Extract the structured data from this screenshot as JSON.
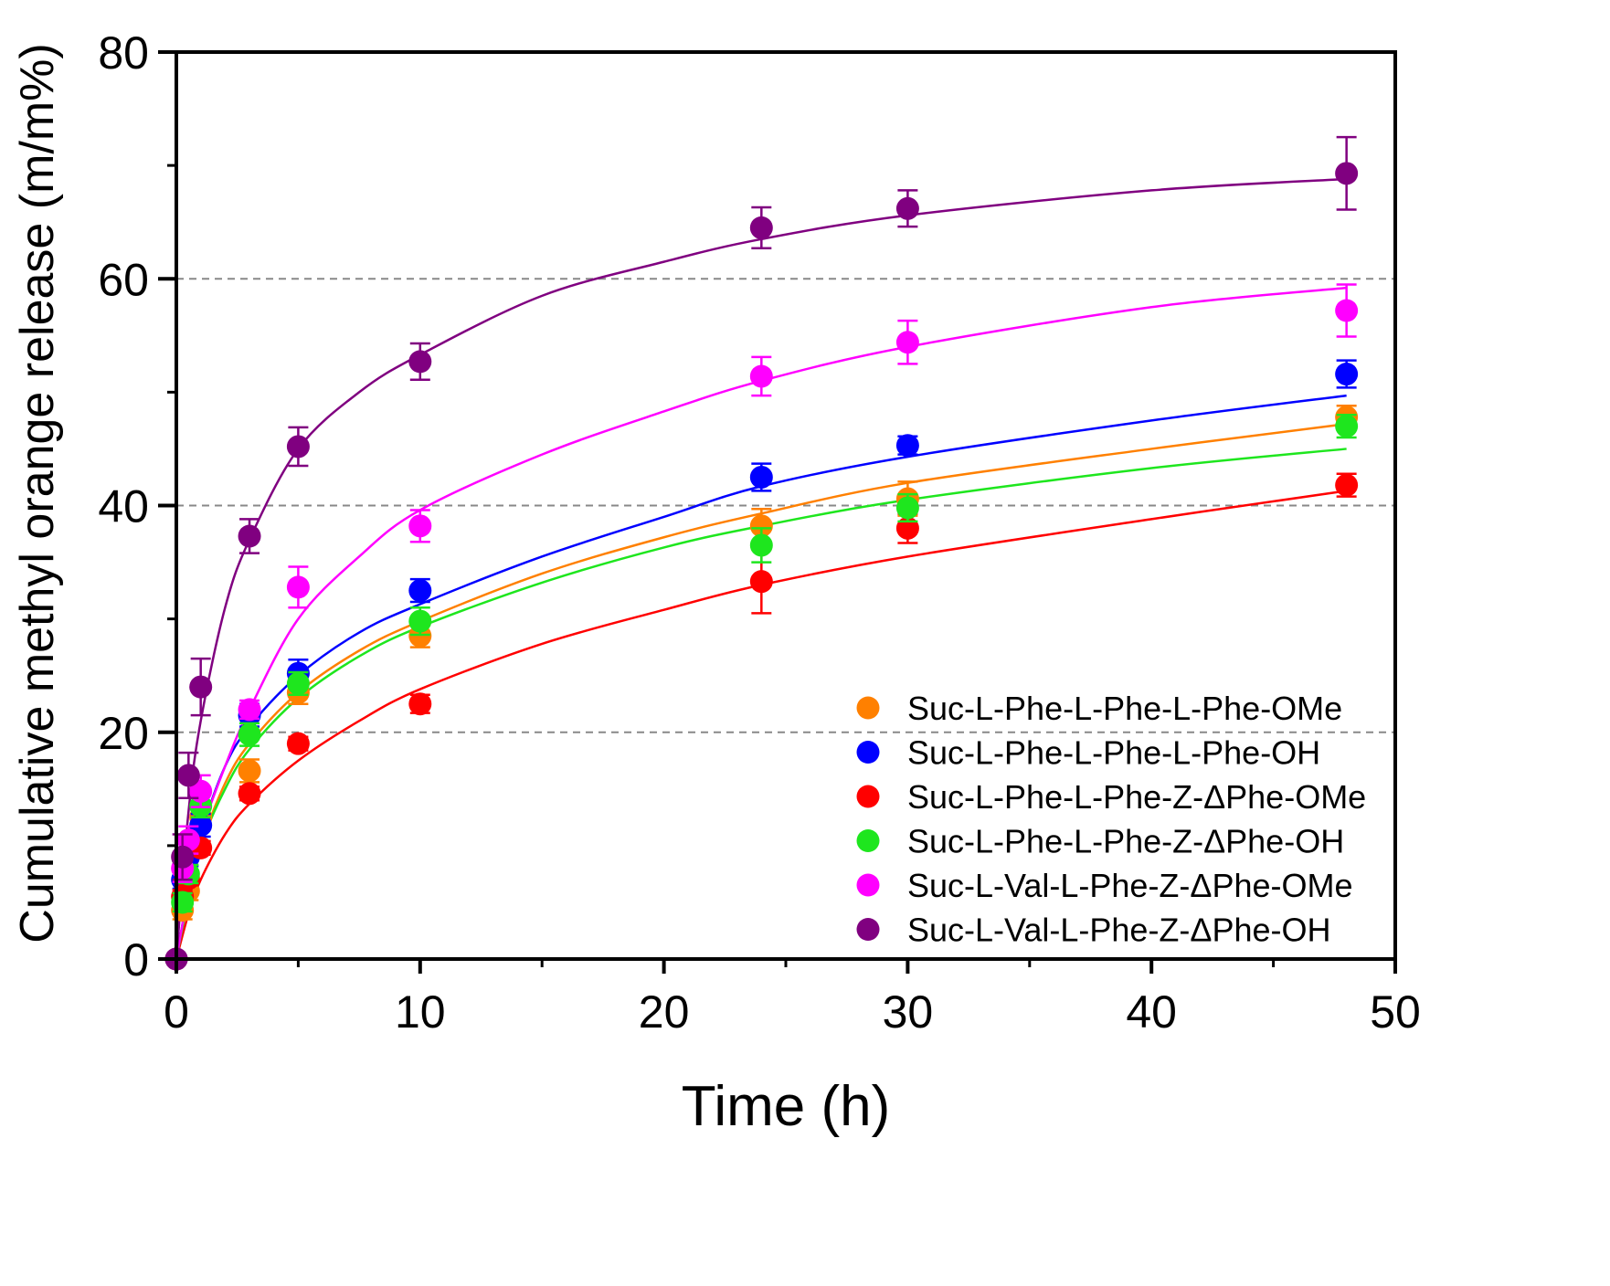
{
  "chart_data": {
    "type": "scatter",
    "title": "",
    "xlabel": "Time (h)",
    "ylabel": "Cumulative methyl orange release (m/m%)",
    "xlim": [
      0,
      50
    ],
    "ylim": [
      0,
      80
    ],
    "xticks": [
      "0",
      "10",
      "20",
      "30",
      "40",
      "50"
    ],
    "yticks": [
      "0",
      "20",
      "40",
      "60",
      "80"
    ],
    "grid": "horizontal dashed at 20, 40, 60",
    "legend_position": "bottom-right",
    "x": [
      0,
      0.25,
      0.5,
      1,
      3,
      5,
      10,
      24,
      30,
      48
    ],
    "fit_x": [
      0,
      0.5,
      1,
      2,
      3,
      5,
      7.5,
      10,
      15,
      20,
      24,
      30,
      40,
      48
    ],
    "series": [
      {
        "name": "Suc-L-Phe-L-Phe-L-Phe-OMe",
        "color": "#ff8000",
        "values": [
          0,
          4.3,
          6.0,
          12.5,
          16.6,
          23.5,
          28.5,
          38.2,
          40.6,
          47.8
        ],
        "errors": [
          0,
          0.8,
          0.8,
          1.0,
          1.0,
          1.0,
          1.0,
          1.5,
          1.5,
          1.0
        ],
        "fit": [
          0,
          5.5,
          10,
          15.5,
          19,
          23.5,
          27.2,
          29.8,
          34,
          37.2,
          39.3,
          42,
          45,
          47.2
        ]
      },
      {
        "name": "Suc-L-Phe-L-Phe-L-Phe-OH",
        "color": "#0000ff",
        "values": [
          0,
          7.0,
          9.0,
          11.8,
          21.5,
          25.2,
          32.5,
          42.5,
          45.3,
          51.6
        ],
        "errors": [
          0,
          0.8,
          0.8,
          1.0,
          1.0,
          1.2,
          1.0,
          1.2,
          0.8,
          1.2
        ],
        "fit": [
          0,
          6,
          11,
          17,
          20.5,
          25,
          28.8,
          31.3,
          35.5,
          39,
          41.7,
          44.3,
          47.5,
          49.7
        ]
      },
      {
        "name": "Suc-L-Phe-L-Phe-Z-ΔPhe-OMe",
        "color": "#ff0000",
        "values": [
          0,
          5.5,
          7.1,
          9.8,
          14.6,
          19.0,
          22.5,
          33.3,
          38.0,
          41.8
        ],
        "errors": [
          0,
          0.6,
          0.6,
          0.6,
          0.6,
          0.6,
          0.8,
          2.8,
          1.3,
          1.0
        ],
        "fit": [
          0,
          4,
          7,
          11,
          13.7,
          17.5,
          21,
          23.8,
          27.8,
          30.8,
          33,
          35.5,
          38.8,
          41.3
        ]
      },
      {
        "name": "Suc-L-Phe-L-Phe-Z-ΔPhe-OH",
        "color": "#1ee61e",
        "values": [
          0,
          5.0,
          7.5,
          13.5,
          19.8,
          24.3,
          29.8,
          36.5,
          39.8,
          47.0
        ],
        "errors": [
          0,
          0.8,
          0.8,
          1.0,
          1.0,
          1.0,
          1.2,
          1.5,
          1.2,
          1.0
        ],
        "fit": [
          0,
          5.5,
          10,
          15,
          18.5,
          23,
          26.7,
          29.3,
          33.2,
          36.3,
          38.2,
          40.5,
          43.3,
          45
        ]
      },
      {
        "name": "Suc-L-Val-L-Phe-Z-ΔPhe-OMe",
        "color": "#ff00ff",
        "values": [
          0,
          8.0,
          10.5,
          14.8,
          22.0,
          32.8,
          38.2,
          51.4,
          54.4,
          57.2
        ],
        "errors": [
          0,
          1.2,
          1.2,
          1.4,
          0.8,
          1.8,
          1.4,
          1.7,
          1.9,
          2.3
        ],
        "fit": [
          0,
          6,
          11,
          17,
          22,
          30,
          35.5,
          39.6,
          44.5,
          48.3,
          51,
          54,
          57.5,
          59.2
        ]
      },
      {
        "name": "Suc-L-Val-L-Phe-Z-ΔPhe-OH",
        "color": "#800080",
        "values": [
          0,
          9.0,
          16.2,
          24.0,
          37.3,
          45.2,
          52.7,
          64.5,
          66.2,
          69.3
        ],
        "errors": [
          0,
          2.0,
          2.0,
          2.5,
          1.5,
          1.7,
          1.6,
          1.8,
          1.6,
          3.2
        ],
        "fit": [
          0,
          13,
          21,
          31,
          37,
          45,
          50,
          53.3,
          58.5,
          61.5,
          63.5,
          65.6,
          67.8,
          68.8
        ]
      }
    ]
  }
}
